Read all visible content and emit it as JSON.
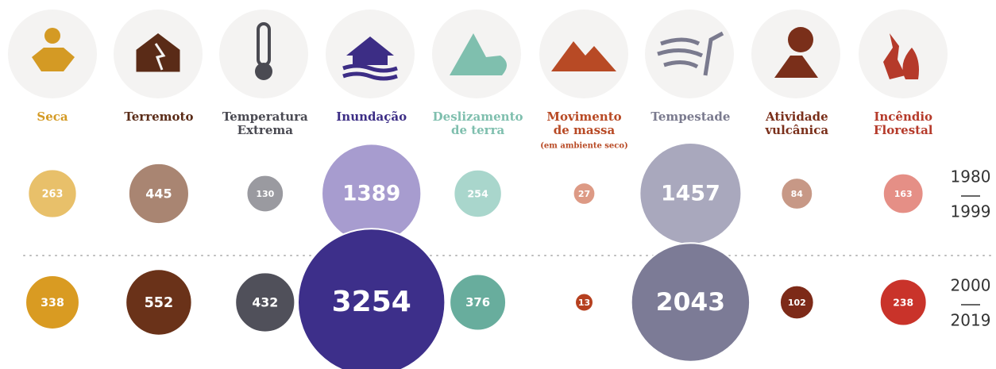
{
  "chart_data": {
    "type": "bubble",
    "categories": [
      [
        "Seca"
      ],
      [
        "Terremoto"
      ],
      [
        "Temperatura",
        "Extrema"
      ],
      [
        "Inundação"
      ],
      [
        "Deslizamento",
        "de terra"
      ],
      [
        "Movimento",
        "de massa"
      ],
      [
        "Tempestade"
      ],
      [
        "Atividade",
        "vulcânica"
      ],
      [
        "Incêndio",
        "Florestal"
      ]
    ],
    "annotation": "(em ambiente seco)",
    "label_colors": [
      "#d49a24",
      "#5a2b17",
      "#4a4a52",
      "#3c2d85",
      "#7fbfae",
      "#b84a25",
      "#7a7a8e",
      "#7a2f1a",
      "#b53a2a"
    ],
    "series": [
      {
        "name_lines": [
          "1980",
          "1999"
        ],
        "values": [
          263,
          445,
          130,
          1389,
          254,
          27,
          1457,
          84,
          163
        ],
        "colors": [
          "#e8c06a",
          "#a98572",
          "#9a9aa0",
          "#a79ccf",
          "#a9d6cc",
          "#dd9a85",
          "#a9a8bd",
          "#c79886",
          "#e58f86"
        ]
      },
      {
        "name_lines": [
          "2000",
          "2019"
        ],
        "values": [
          338,
          552,
          432,
          3254,
          376,
          13,
          2043,
          102,
          238
        ],
        "colors": [
          "#d99b22",
          "#6a3219",
          "#50505a",
          "#3d2f8a",
          "#68ad9d",
          "#b6401f",
          "#7c7b96",
          "#7d2a18",
          "#c9332a"
        ]
      }
    ]
  }
}
